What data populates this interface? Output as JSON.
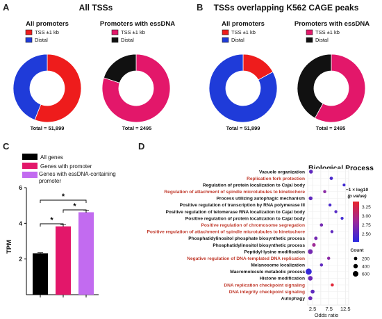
{
  "colors": {
    "tss": "#ee1c1c",
    "distal": "#1f3bd9",
    "ess_tss": "#e3176a",
    "ess_distal": "#111111",
    "all_genes": "#000000",
    "genes_promoter": "#e3176a",
    "genes_essdna": "#c26bf0",
    "bp_red": "#c0392b",
    "bp_black": "#111111"
  },
  "panel_a": {
    "letter": "A",
    "title": "All TSSs",
    "left": {
      "subtitle": "All promoters",
      "legend": [
        "TSS ±1 kb",
        "Distal"
      ],
      "total": "Total = 51,899"
    },
    "right": {
      "subtitle": "Promoters with essDNA",
      "legend": [
        "TSS ±1 kb",
        "Distal"
      ],
      "total": "Total = 2495"
    }
  },
  "panel_b": {
    "letter": "B",
    "title": "TSSs overlapping K562 CAGE peaks",
    "left": {
      "subtitle": "All promoters",
      "legend": [
        "TSS ±1 kb",
        "Distal"
      ],
      "total": "Total = 51,899"
    },
    "right": {
      "subtitle": "Promoters with essDNA",
      "legend": [
        "TSS ±1 kb",
        "Distal"
      ],
      "total": "Total = 2495"
    }
  },
  "panel_c": {
    "letter": "C",
    "legend": [
      "All genes",
      "Genes with promoter",
      "Genes with essDNA-containing promoter"
    ],
    "ylabel": "TPM",
    "star": "*"
  },
  "panel_d": {
    "letter": "D",
    "title": "Biological Process",
    "xlabel": "Odds ratio",
    "colorbar_title_1": "−1 × log10",
    "colorbar_title_2": "(p value)",
    "colorbar_ticks": [
      "3.25",
      "3.00",
      "2.75",
      "2.50"
    ],
    "count_title": "Count",
    "count_labels": [
      "200",
      "400",
      "600"
    ]
  },
  "chart_data": [
    {
      "type": "pie",
      "panel": "A",
      "title": "All promoters",
      "categories": [
        "TSS ±1 kb",
        "Distal"
      ],
      "values": [
        56,
        44
      ]
    },
    {
      "type": "pie",
      "panel": "A",
      "title": "Promoters with essDNA",
      "categories": [
        "TSS ±1 kb",
        "Distal"
      ],
      "values": [
        80,
        20
      ]
    },
    {
      "type": "pie",
      "panel": "B",
      "title": "All promoters",
      "categories": [
        "TSS ±1 kb",
        "Distal"
      ],
      "values": [
        17,
        83
      ]
    },
    {
      "type": "pie",
      "panel": "B",
      "title": "Promoters with essDNA",
      "categories": [
        "TSS ±1 kb",
        "Distal"
      ],
      "values": [
        58,
        42
      ]
    },
    {
      "type": "bar",
      "panel": "C",
      "categories": [
        "All genes",
        "Genes with promoter",
        "Genes with essDNA-containing promoter"
      ],
      "values": [
        2.32,
        3.83,
        4.62
      ],
      "errors": [
        0.03,
        0.1,
        0.12
      ],
      "ylabel": "TPM",
      "ylim": [
        0,
        6
      ],
      "yticks": [
        2,
        4,
        6
      ],
      "significance": [
        {
          "from": 0,
          "to": 1,
          "label": "*"
        },
        {
          "from": 1,
          "to": 2,
          "label": "*"
        },
        {
          "from": 0,
          "to": 2,
          "label": "*"
        }
      ]
    },
    {
      "type": "scatter",
      "panel": "D",
      "title": "Biological Process",
      "xlabel": "Odds ratio",
      "xticks": [
        2.5,
        7.5,
        12.5
      ],
      "xlim": [
        1.0,
        13.5
      ],
      "grid": true,
      "colorbar_range": [
        2.35,
        3.4
      ],
      "points": [
        {
          "term": "Vacuole organization",
          "odds_ratio": 2.0,
          "neglog10p": 2.6,
          "count": 150,
          "highlight": false
        },
        {
          "term": "Replication fork protection",
          "odds_ratio": 8.2,
          "neglog10p": 2.5,
          "count": 80,
          "highlight": true
        },
        {
          "term": "Regulation of protein localization to Cajal body",
          "odds_ratio": 12.1,
          "neglog10p": 2.45,
          "count": 40,
          "highlight": false
        },
        {
          "term": "Regulation of attachment of spindle microtubules to kinetochore",
          "odds_ratio": 6.2,
          "neglog10p": 2.8,
          "count": 60,
          "highlight": true
        },
        {
          "term": "Process utilizing autophagic mechanism",
          "odds_ratio": 1.9,
          "neglog10p": 2.6,
          "count": 150,
          "highlight": false
        },
        {
          "term": "Positive regulation of transcription by RNA polymerase III",
          "odds_ratio": 7.8,
          "neglog10p": 2.5,
          "count": 50,
          "highlight": false
        },
        {
          "term": "Positive regulation of telomerase RNA localization to Cajal body",
          "odds_ratio": 9.6,
          "neglog10p": 2.55,
          "count": 50,
          "highlight": false
        },
        {
          "term": "Positive regulation of protein localization to Cajal body",
          "odds_ratio": 11.5,
          "neglog10p": 2.45,
          "count": 40,
          "highlight": false
        },
        {
          "term": "Positive regulation of chromosome segregation",
          "odds_ratio": 5.2,
          "neglog10p": 2.7,
          "count": 70,
          "highlight": true
        },
        {
          "term": "Positive regulation of attachment of spindle microtubules to kinetochore",
          "odds_ratio": 8.4,
          "neglog10p": 2.6,
          "count": 50,
          "highlight": true
        },
        {
          "term": "Phosphatidylinositol phosphate biosynthetic process",
          "odds_ratio": 3.5,
          "neglog10p": 2.7,
          "count": 90,
          "highlight": false
        },
        {
          "term": "Phosphatidylinositol biosynthetic process",
          "odds_ratio": 2.9,
          "neglog10p": 2.9,
          "count": 110,
          "highlight": false
        },
        {
          "term": "Peptidyl-lysine modification",
          "odds_ratio": 1.8,
          "neglog10p": 2.7,
          "count": 350,
          "highlight": false
        },
        {
          "term": "Negative regulation of DNA-templated DNA replication",
          "odds_ratio": 7.4,
          "neglog10p": 2.8,
          "count": 60,
          "highlight": true
        },
        {
          "term": "Melanosome localization",
          "odds_ratio": 5.2,
          "neglog10p": 2.6,
          "count": 60,
          "highlight": false
        },
        {
          "term": "Macromolecule metabolic process",
          "odds_ratio": 1.3,
          "neglog10p": 2.4,
          "count": 750,
          "highlight": false
        },
        {
          "term": "Histone modification",
          "odds_ratio": 1.8,
          "neglog10p": 2.65,
          "count": 300,
          "highlight": false
        },
        {
          "term": "DNA replication checkpoint signaling",
          "odds_ratio": 8.5,
          "neglog10p": 3.35,
          "count": 60,
          "highlight": true
        },
        {
          "term": "DNA integrity checkpoint signaling",
          "odds_ratio": 2.5,
          "neglog10p": 2.6,
          "count": 170,
          "highlight": true
        },
        {
          "term": "Autophagy",
          "odds_ratio": 1.8,
          "neglog10p": 2.65,
          "count": 180,
          "highlight": false
        }
      ]
    }
  ]
}
